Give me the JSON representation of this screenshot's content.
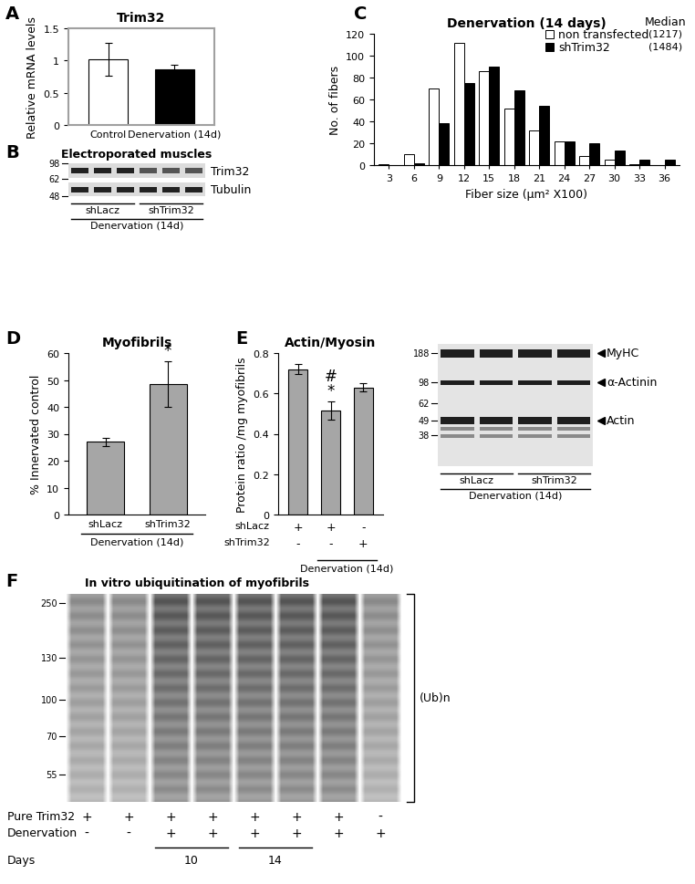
{
  "chart_data": [
    {
      "panel": "A",
      "type": "bar",
      "title": "Trim32",
      "ylabel": "Relative mRNA levels",
      "categories": [
        "Control",
        "Denervation (14d)"
      ],
      "values": [
        1.02,
        0.87
      ],
      "errors": [
        0.25,
        0.07
      ],
      "colors": [
        "#ffffff",
        "#000000"
      ],
      "ylim": [
        0,
        1.5
      ],
      "yticks": [
        0,
        0.5,
        1,
        1.5
      ]
    },
    {
      "panel": "C",
      "type": "bar",
      "title": "Denervation (14 days)",
      "xlabel": "Fiber size (µm² X100)",
      "ylabel": "No. of fibers",
      "categories": [
        "3",
        "6",
        "9",
        "12",
        "15",
        "18",
        "21",
        "24",
        "27",
        "30",
        "33",
        "36"
      ],
      "median_title": "Median",
      "series": [
        {
          "name": "non transfected",
          "color": "#ffffff",
          "median_label": "(1217)",
          "values": [
            1,
            10,
            70,
            112,
            86,
            52,
            32,
            22,
            8,
            5,
            1,
            0
          ]
        },
        {
          "name": "shTrim32",
          "color": "#000000",
          "median_label": "(1484)",
          "values": [
            0,
            2,
            38,
            75,
            90,
            68,
            54,
            22,
            20,
            13,
            5,
            5
          ]
        }
      ],
      "ylim": [
        0,
        120
      ],
      "yticks": [
        0,
        20,
        40,
        60,
        80,
        100,
        120
      ]
    },
    {
      "panel": "D",
      "type": "bar",
      "title": "Myofibrils",
      "ylabel": "% Innervated control",
      "categories": [
        "shLacz",
        "shTrim32"
      ],
      "values": [
        27,
        48.5
      ],
      "errors": [
        1.5,
        8.5
      ],
      "color": "#a6a6a6",
      "annotations": [
        null,
        [
          "*"
        ]
      ],
      "group": {
        "label": "Denervation (14d)",
        "members": [
          true,
          true
        ]
      },
      "ylim": [
        0,
        60
      ],
      "yticks": [
        0,
        10,
        20,
        30,
        40,
        50,
        60
      ]
    },
    {
      "panel": "E",
      "type": "bar",
      "title": "Actin/Myosin",
      "ylabel": "Protein ratio /mg myofibrils",
      "categories": [
        null,
        null,
        null
      ],
      "values": [
        0.72,
        0.515,
        0.63
      ],
      "errors": [
        0.025,
        0.045,
        0.02
      ],
      "color": "#a6a6a6",
      "annotations": [
        null,
        [
          "*",
          "#"
        ],
        null
      ],
      "conditions": [
        {
          "name": "shLacz",
          "values": [
            "+",
            "+",
            "-"
          ]
        },
        {
          "name": "shTrim32",
          "values": [
            "-",
            "-",
            "+"
          ]
        }
      ],
      "group": {
        "label": "Denervation (14d)",
        "members": [
          false,
          true,
          true
        ]
      },
      "ylim": [
        0,
        0.8
      ],
      "yticks": [
        0,
        0.2,
        0.4,
        0.6,
        0.8
      ]
    }
  ],
  "blots": [
    {
      "panel": "B",
      "type": "blot",
      "title": "Electroporated muscles",
      "markers": [
        98,
        62,
        48
      ],
      "bands": [
        "Trim32",
        "Tubulin"
      ],
      "lanes": [
        {
          "label": "shLacz",
          "count": 3
        },
        {
          "label": "shTrim32",
          "count": 3
        }
      ],
      "group_label": "Denervation (14d)"
    },
    {
      "type": "gel",
      "markers": [
        188,
        98,
        62,
        49,
        38
      ],
      "bands": [
        "MyHC",
        "α-Actinin",
        "Actin"
      ],
      "lanes": [
        {
          "label": "shLacz",
          "count": 2
        },
        {
          "label": "shTrim32",
          "count": 2
        }
      ],
      "group_label": "Denervation (14d)"
    },
    {
      "panel": "F",
      "type": "blot",
      "title": "In vitro ubiquitination of myofibrils",
      "markers": [
        250,
        130,
        100,
        70,
        55
      ],
      "bracket_label": "(Ub)n",
      "rows": [
        {
          "name": "Pure Trim32",
          "values": [
            "+",
            "+",
            "+",
            "+",
            "+",
            "+",
            "+",
            "-"
          ]
        },
        {
          "name": "Denervation",
          "values": [
            "-",
            "-",
            "+",
            "+",
            "+",
            "+",
            "+",
            "+"
          ]
        }
      ],
      "days": {
        "name": "Days",
        "groups": [
          {
            "label": "10",
            "lanes": [
              2,
              3
            ]
          },
          {
            "label": "14",
            "lanes": [
              4,
              5
            ]
          }
        ]
      }
    }
  ]
}
